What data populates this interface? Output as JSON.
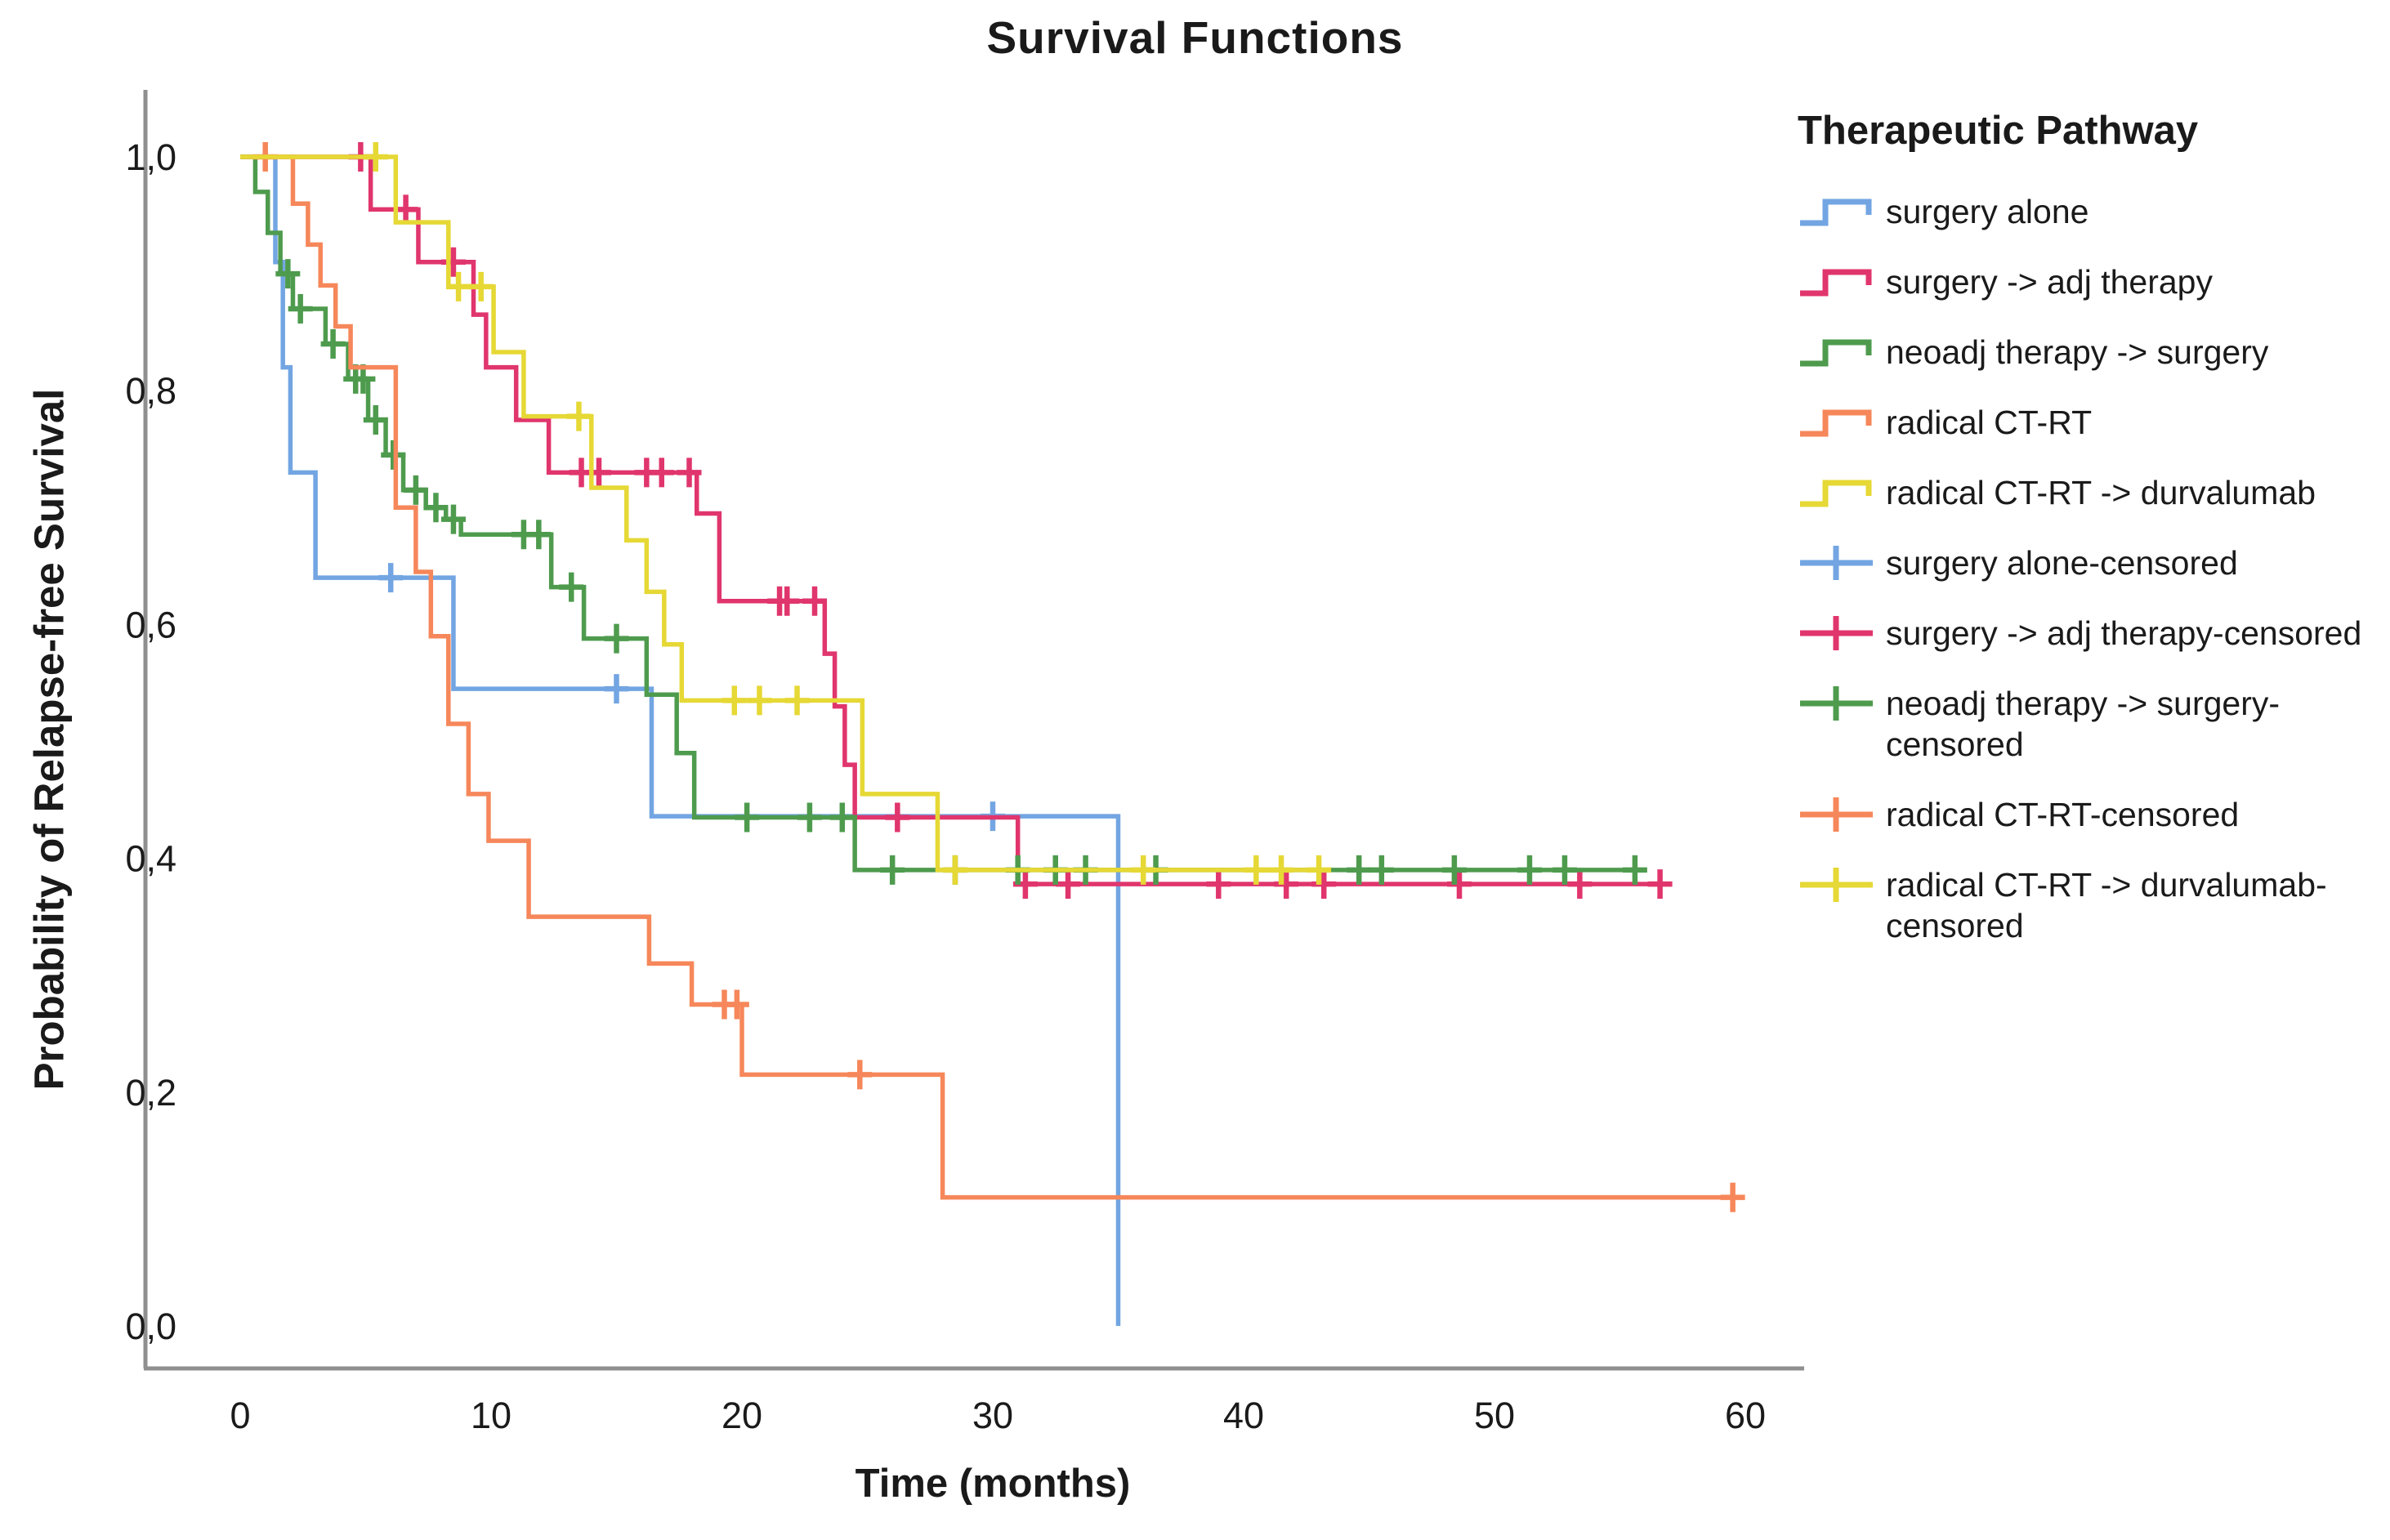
{
  "title": "Survival Functions",
  "axes": {
    "x": {
      "label": "Time (months)",
      "ticks": [
        0,
        10,
        20,
        30,
        40,
        50,
        60
      ],
      "range": [
        0,
        60
      ]
    },
    "y": {
      "label": "Probability of Relapse-free Survival",
      "tick_labels": [
        "1,0",
        "0,8",
        "0,6",
        "0,4",
        "0,2",
        "0,0"
      ],
      "tick_values": [
        1.0,
        0.8,
        0.6,
        0.4,
        0.2,
        0.0
      ],
      "range": [
        0,
        1
      ]
    }
  },
  "legend": {
    "title": "Therapeutic Pathway",
    "items": [
      {
        "label": "surgery alone",
        "color": "#72A5E2",
        "marker": "step"
      },
      {
        "label": "surgery -> adj therapy",
        "color": "#E0356D",
        "marker": "step"
      },
      {
        "label": "neoadj therapy -> surgery",
        "color": "#4E9B4E",
        "marker": "step"
      },
      {
        "label": "radical CT-RT",
        "color": "#F6875A",
        "marker": "step"
      },
      {
        "label": "radical CT-RT -> durvalumab",
        "color": "#E6D835",
        "marker": "step"
      },
      {
        "label": "surgery alone-censored",
        "color": "#72A5E2",
        "marker": "censor"
      },
      {
        "label": "surgery -> adj therapy-censored",
        "color": "#E0356D",
        "marker": "censor"
      },
      {
        "label": "neoadj therapy -> surgery-censored",
        "color": "#4E9B4E",
        "marker": "censor"
      },
      {
        "label": "radical CT-RT-censored",
        "color": "#F6875A",
        "marker": "censor"
      },
      {
        "label": "radical CT-RT -> durvalumab-censored",
        "color": "#E6D835",
        "marker": "censor"
      }
    ]
  },
  "chart_data": {
    "type": "line",
    "subtype": "kaplan-meier-step",
    "title": "Survival Functions",
    "xlabel": "Time (months)",
    "ylabel": "Probability of Relapse-free Survival",
    "xlim": [
      0,
      60
    ],
    "ylim": [
      0,
      1
    ],
    "grid": false,
    "legend_position": "right",
    "series": [
      {
        "name": "surgery alone",
        "color": "#72A5E2",
        "steps": [
          [
            0,
            1.0
          ],
          [
            1.4,
            0.91
          ],
          [
            1.7,
            0.82
          ],
          [
            2.0,
            0.73
          ],
          [
            3.0,
            0.64
          ],
          [
            8.5,
            0.545
          ],
          [
            16.4,
            0.436
          ],
          [
            35,
            0.0
          ]
        ],
        "censors": [
          [
            6.0,
            0.64
          ],
          [
            15.0,
            0.545
          ],
          [
            30.0,
            0.436
          ]
        ]
      },
      {
        "name": "surgery -> adj therapy",
        "color": "#E0356D",
        "steps": [
          [
            0,
            1.0
          ],
          [
            5.2,
            0.955
          ],
          [
            7.1,
            0.91
          ],
          [
            9.3,
            0.865
          ],
          [
            9.8,
            0.82
          ],
          [
            11.0,
            0.775
          ],
          [
            12.3,
            0.73
          ],
          [
            18.2,
            0.695
          ],
          [
            19.1,
            0.62
          ],
          [
            23.3,
            0.575
          ],
          [
            23.7,
            0.53
          ],
          [
            24.1,
            0.48
          ],
          [
            24.5,
            0.435
          ],
          [
            31.0,
            0.378
          ],
          [
            57.0,
            0.378
          ]
        ],
        "censors": [
          [
            4.8,
            1.0
          ],
          [
            6.6,
            0.955
          ],
          [
            8.5,
            0.91
          ],
          [
            13.6,
            0.73
          ],
          [
            14.3,
            0.73
          ],
          [
            16.2,
            0.73
          ],
          [
            16.8,
            0.73
          ],
          [
            17.9,
            0.73
          ],
          [
            21.5,
            0.62
          ],
          [
            21.8,
            0.62
          ],
          [
            22.9,
            0.62
          ],
          [
            26.2,
            0.435
          ],
          [
            31.3,
            0.378
          ],
          [
            33.0,
            0.378
          ],
          [
            39.0,
            0.378
          ],
          [
            41.7,
            0.378
          ],
          [
            43.2,
            0.378
          ],
          [
            48.6,
            0.378
          ],
          [
            53.4,
            0.378
          ],
          [
            56.6,
            0.378
          ]
        ]
      },
      {
        "name": "neoadj therapy -> surgery",
        "color": "#4E9B4E",
        "steps": [
          [
            0,
            1.0
          ],
          [
            0.6,
            0.97
          ],
          [
            1.1,
            0.935
          ],
          [
            1.6,
            0.9
          ],
          [
            2.1,
            0.87
          ],
          [
            3.4,
            0.84
          ],
          [
            4.3,
            0.81
          ],
          [
            5.1,
            0.775
          ],
          [
            5.8,
            0.745
          ],
          [
            6.5,
            0.715
          ],
          [
            7.4,
            0.7
          ],
          [
            8.2,
            0.69
          ],
          [
            8.8,
            0.677
          ],
          [
            12.4,
            0.632
          ],
          [
            13.7,
            0.588
          ],
          [
            16.2,
            0.54
          ],
          [
            17.4,
            0.49
          ],
          [
            18.1,
            0.435
          ],
          [
            24.5,
            0.39
          ],
          [
            56.0,
            0.39
          ]
        ],
        "censors": [
          [
            1.9,
            0.9
          ],
          [
            2.4,
            0.87
          ],
          [
            3.7,
            0.84
          ],
          [
            4.6,
            0.81
          ],
          [
            4.9,
            0.81
          ],
          [
            5.4,
            0.775
          ],
          [
            6.1,
            0.745
          ],
          [
            7.0,
            0.715
          ],
          [
            7.8,
            0.7
          ],
          [
            8.5,
            0.69
          ],
          [
            11.3,
            0.677
          ],
          [
            11.9,
            0.677
          ],
          [
            13.2,
            0.632
          ],
          [
            15.0,
            0.588
          ],
          [
            20.2,
            0.435
          ],
          [
            22.7,
            0.435
          ],
          [
            24.0,
            0.435
          ],
          [
            26.0,
            0.39
          ],
          [
            28.5,
            0.39
          ],
          [
            31.0,
            0.39
          ],
          [
            32.5,
            0.39
          ],
          [
            33.7,
            0.39
          ],
          [
            36.5,
            0.39
          ],
          [
            44.6,
            0.39
          ],
          [
            45.5,
            0.39
          ],
          [
            48.4,
            0.39
          ],
          [
            51.4,
            0.39
          ],
          [
            52.8,
            0.39
          ],
          [
            55.6,
            0.39
          ]
        ]
      },
      {
        "name": "radical CT-RT",
        "color": "#F6875A",
        "steps": [
          [
            0,
            1.0
          ],
          [
            2.1,
            0.96
          ],
          [
            2.7,
            0.925
          ],
          [
            3.2,
            0.89
          ],
          [
            3.8,
            0.855
          ],
          [
            4.4,
            0.82
          ],
          [
            6.2,
            0.7
          ],
          [
            7.0,
            0.645
          ],
          [
            7.6,
            0.59
          ],
          [
            8.3,
            0.515
          ],
          [
            9.1,
            0.455
          ],
          [
            9.9,
            0.415
          ],
          [
            11.5,
            0.35
          ],
          [
            16.3,
            0.31
          ],
          [
            18.0,
            0.275
          ],
          [
            20.0,
            0.215
          ],
          [
            28.0,
            0.11
          ],
          [
            59.6,
            0.11
          ]
        ],
        "censors": [
          [
            1.0,
            1.0
          ],
          [
            19.3,
            0.275
          ],
          [
            19.8,
            0.275
          ],
          [
            24.7,
            0.215
          ],
          [
            59.5,
            0.11
          ]
        ]
      },
      {
        "name": "radical CT-RT -> durvalumab",
        "color": "#E6D835",
        "steps": [
          [
            0,
            1.0
          ],
          [
            6.2,
            0.944
          ],
          [
            8.3,
            0.889
          ],
          [
            10.1,
            0.833
          ],
          [
            11.3,
            0.778
          ],
          [
            14.0,
            0.717
          ],
          [
            15.4,
            0.672
          ],
          [
            16.2,
            0.628
          ],
          [
            16.9,
            0.583
          ],
          [
            17.6,
            0.535
          ],
          [
            24.8,
            0.455
          ],
          [
            27.8,
            0.39
          ],
          [
            43.2,
            0.39
          ]
        ],
        "censors": [
          [
            5.4,
            1.0
          ],
          [
            8.7,
            0.889
          ],
          [
            9.6,
            0.889
          ],
          [
            13.5,
            0.778
          ],
          [
            19.7,
            0.535
          ],
          [
            20.7,
            0.535
          ],
          [
            22.2,
            0.535
          ],
          [
            28.5,
            0.39
          ],
          [
            36.0,
            0.39
          ],
          [
            40.5,
            0.39
          ],
          [
            41.5,
            0.39
          ],
          [
            43.0,
            0.39
          ]
        ]
      }
    ]
  }
}
